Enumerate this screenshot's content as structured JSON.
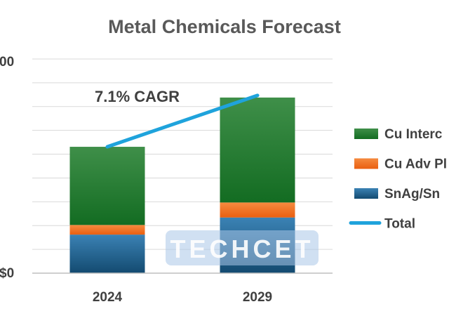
{
  "watermark": "TECHCET",
  "colors": {
    "cu_interconnect": "#1f7a2e",
    "cu_adv_pkg": "#f26b1d",
    "snag_sn": "#1c5f8f",
    "total": "#1fa3dc",
    "grid": "#d9d9d9"
  },
  "chart_data": {
    "type": "bar",
    "stacked": true,
    "title": "Metal Chemicals Forecast",
    "xlabel": "",
    "ylabel": "",
    "categories": [
      "2024",
      "2029"
    ],
    "y_tick_labels": [
      "$0",
      "00"
    ],
    "ylim": [
      0,
      100
    ],
    "grid": true,
    "legend_position": "right",
    "series": [
      {
        "name": "SnAg/Sn",
        "type": "bar",
        "values": [
          18,
          26
        ]
      },
      {
        "name": "Cu Adv Pl",
        "type": "bar",
        "values": [
          4.5,
          7
        ]
      },
      {
        "name": "Cu Interc",
        "type": "bar",
        "values": [
          36.5,
          49
        ]
      },
      {
        "name": "Total",
        "type": "line",
        "values": [
          59,
          83
        ]
      }
    ],
    "legend_order": [
      "Cu Interc",
      "Cu Adv Pl",
      "SnAg/Sn",
      "Total"
    ],
    "annotation": "7.1% CAGR"
  }
}
